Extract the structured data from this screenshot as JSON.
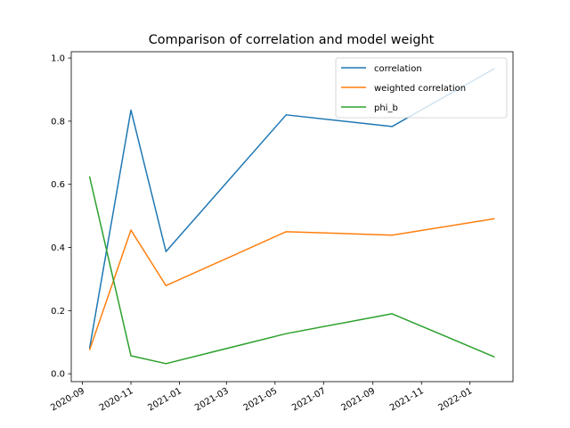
{
  "chart_data": {
    "type": "line",
    "title": "Comparison of correlation and model weight",
    "xlabel": "",
    "ylabel": "",
    "x": [
      "2020-09-10",
      "2020-11-01",
      "2020-12-15",
      "2021-05-15",
      "2021-09-25",
      "2022-02-01"
    ],
    "series": [
      {
        "name": "correlation",
        "color": "#1f77b4",
        "values": [
          0.08,
          0.835,
          0.387,
          0.82,
          0.783,
          0.967
        ]
      },
      {
        "name": "weighted correlation",
        "color": "#ff7f0e",
        "values": [
          0.075,
          0.455,
          0.279,
          0.45,
          0.439,
          0.491
        ]
      },
      {
        "name": "phi_b",
        "color": "#2ca02c",
        "values": [
          0.625,
          0.057,
          0.032,
          0.127,
          0.19,
          0.053
        ]
      }
    ],
    "xticks": [
      "2020-09",
      "2020-11",
      "2021-01",
      "2021-03",
      "2021-05",
      "2021-07",
      "2021-09",
      "2021-11",
      "2022-01"
    ],
    "yticks": [
      "0.0",
      "0.2",
      "0.4",
      "0.6",
      "0.8",
      "1.0"
    ],
    "ylim": [
      -0.025,
      1.02
    ],
    "xlim": [
      "2020-08-18",
      "2022-02-24"
    ],
    "grid": false,
    "legend_position": "top-right"
  }
}
